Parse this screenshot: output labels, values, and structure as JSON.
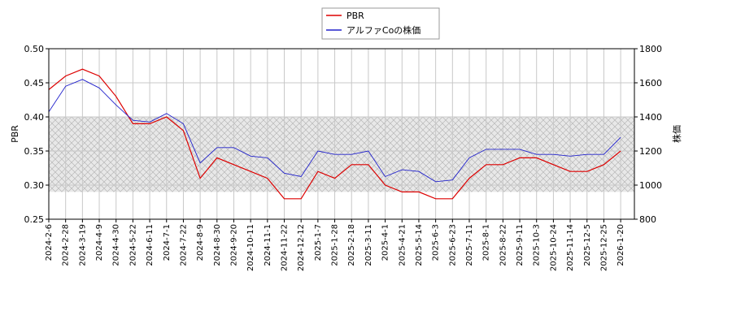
{
  "chart_data": {
    "type": "line",
    "x": [
      "2024-2-6",
      "2024-2-28",
      "2024-3-19",
      "2024-4-9",
      "2024-4-30",
      "2024-5-22",
      "2024-6-11",
      "2024-7-1",
      "2024-7-22",
      "2024-8-9",
      "2024-8-30",
      "2024-9-20",
      "2024-10-11",
      "2024-11-1",
      "2024-11-22",
      "2024-12-12",
      "2025-1-7",
      "2025-1-28",
      "2025-2-18",
      "2025-3-11",
      "2025-4-1",
      "2025-4-21",
      "2025-5-14",
      "2025-6-3",
      "2025-6-23",
      "2025-7-11",
      "2025-8-1",
      "2025-8-22",
      "2025-9-11",
      "2025-10-3",
      "2025-10-24",
      "2025-11-14",
      "2025-12-5",
      "2025-12-25",
      "2026-1-20"
    ],
    "series": [
      {
        "name": "PBR",
        "color": "#dd0000",
        "values": [
          0.44,
          0.46,
          0.47,
          0.46,
          0.43,
          0.39,
          0.39,
          0.4,
          0.38,
          0.31,
          0.34,
          0.33,
          0.32,
          0.31,
          0.28,
          0.28,
          0.32,
          0.31,
          0.33,
          0.33,
          0.3,
          0.29,
          0.29,
          0.28,
          0.28,
          0.31,
          0.33,
          0.33,
          0.34,
          0.34,
          0.33,
          0.32,
          0.32,
          0.33,
          0.35
        ]
      },
      {
        "name": "アルファCoの株価",
        "color": "#2222cc",
        "axis": "y2",
        "values": [
          1430,
          1580,
          1620,
          1570,
          1470,
          1380,
          1370,
          1420,
          1360,
          1130,
          1220,
          1220,
          1170,
          1160,
          1070,
          1050,
          1200,
          1180,
          1180,
          1200,
          1050,
          1090,
          1080,
          1020,
          1030,
          1160,
          1210,
          1210,
          1210,
          1180,
          1180,
          1170,
          1180,
          1180,
          1280
        ]
      }
    ],
    "ylabel": "PBR",
    "y2label": "株価",
    "ylim": [
      0.25,
      0.5
    ],
    "yticks": [
      {
        "value": 0.25,
        "label": "0.25"
      },
      {
        "value": 0.3,
        "label": "0.30"
      },
      {
        "value": 0.35,
        "label": "0.35"
      },
      {
        "value": 0.4,
        "label": "0.40"
      },
      {
        "value": 0.45,
        "label": "0.45"
      },
      {
        "value": 0.5,
        "label": "0.50"
      }
    ],
    "y2lim": [
      800,
      1800
    ],
    "y2ticks": [
      800,
      1000,
      1200,
      1400,
      1600,
      1800
    ],
    "shaded_range": [
      0.29,
      0.4
    ],
    "grid": true,
    "legend": "top"
  }
}
